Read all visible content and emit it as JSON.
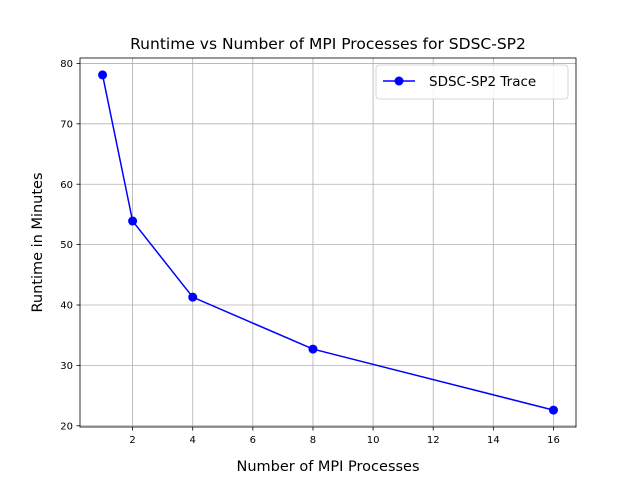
{
  "chart_data": {
    "type": "line",
    "title": "Runtime vs Number of MPI Processes for SDSC-SP2",
    "xlabel": "Number of MPI Processes",
    "ylabel": "Runtime in Minutes",
    "xlim": [
      0.25,
      16.75
    ],
    "ylim": [
      19.8,
      80.9
    ],
    "xticks": [
      2,
      4,
      6,
      8,
      10,
      12,
      14,
      16
    ],
    "yticks": [
      20,
      30,
      40,
      50,
      60,
      70,
      80
    ],
    "grid": true,
    "legend_position": "top-right",
    "series": [
      {
        "name": "SDSC-SP2 Trace",
        "color": "#0000ff",
        "marker": "circle",
        "x": [
          1,
          2,
          4,
          8,
          16
        ],
        "y": [
          78.1,
          53.9,
          41.3,
          32.7,
          22.6
        ]
      }
    ]
  }
}
